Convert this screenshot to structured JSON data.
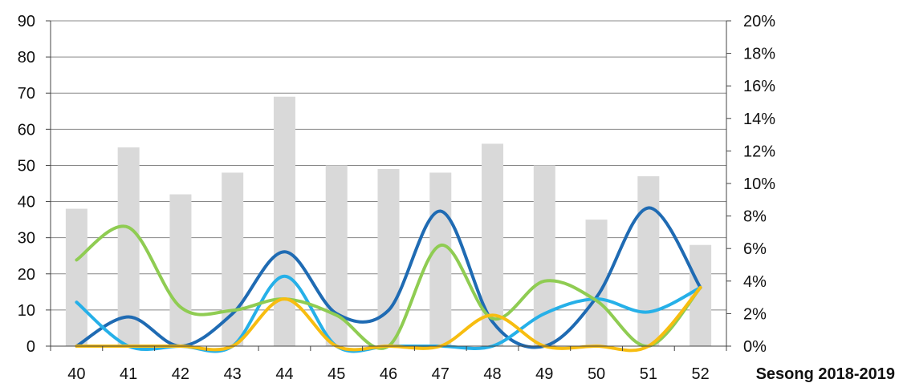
{
  "chart_data": {
    "type": "bar",
    "title": "",
    "xlabel": "Sesong 2018-2019",
    "categories": [
      "40",
      "41",
      "42",
      "43",
      "44",
      "45",
      "46",
      "47",
      "48",
      "49",
      "50",
      "51",
      "52"
    ],
    "y_left": {
      "ylim": [
        0,
        90
      ],
      "ticks": [
        "0",
        "10",
        "20",
        "30",
        "40",
        "50",
        "60",
        "70",
        "80",
        "90"
      ]
    },
    "y_right": {
      "ylim": [
        0,
        20
      ],
      "ticks": [
        "0%",
        "2%",
        "4%",
        "6%",
        "8%",
        "10%",
        "12%",
        "14%",
        "16%",
        "18%",
        "20%"
      ]
    },
    "grid": true,
    "legend": "none",
    "bars": {
      "axis": "left",
      "color": "#d9d9d9",
      "values": [
        38,
        55,
        42,
        48,
        69,
        50,
        49,
        48,
        56,
        50,
        35,
        47,
        28
      ]
    },
    "series": [
      {
        "type": "line",
        "axis": "right",
        "smooth": true,
        "color": "#1f6bb3",
        "values": [
          0,
          1.8,
          0,
          2.0,
          5.8,
          2.0,
          2.2,
          8.3,
          1.5,
          0,
          3.0,
          8.5,
          3.6
        ]
      },
      {
        "type": "line",
        "axis": "right",
        "smooth": true,
        "color": "#26b0e8",
        "values": [
          2.7,
          0,
          0,
          0,
          4.3,
          0,
          0,
          0,
          0,
          2.0,
          2.9,
          2.1,
          3.6
        ]
      },
      {
        "type": "line",
        "axis": "right",
        "smooth": true,
        "color": "#8fcc52",
        "values": [
          5.3,
          7.3,
          2.4,
          2.2,
          2.9,
          1.9,
          0,
          6.2,
          1.7,
          4.0,
          2.8,
          0,
          3.6
        ]
      },
      {
        "type": "line",
        "axis": "right",
        "smooth": true,
        "color": "#f7bd10",
        "values": [
          0,
          0,
          0,
          0,
          2.9,
          0,
          0,
          0,
          1.9,
          0,
          0,
          0,
          3.6
        ]
      }
    ]
  }
}
